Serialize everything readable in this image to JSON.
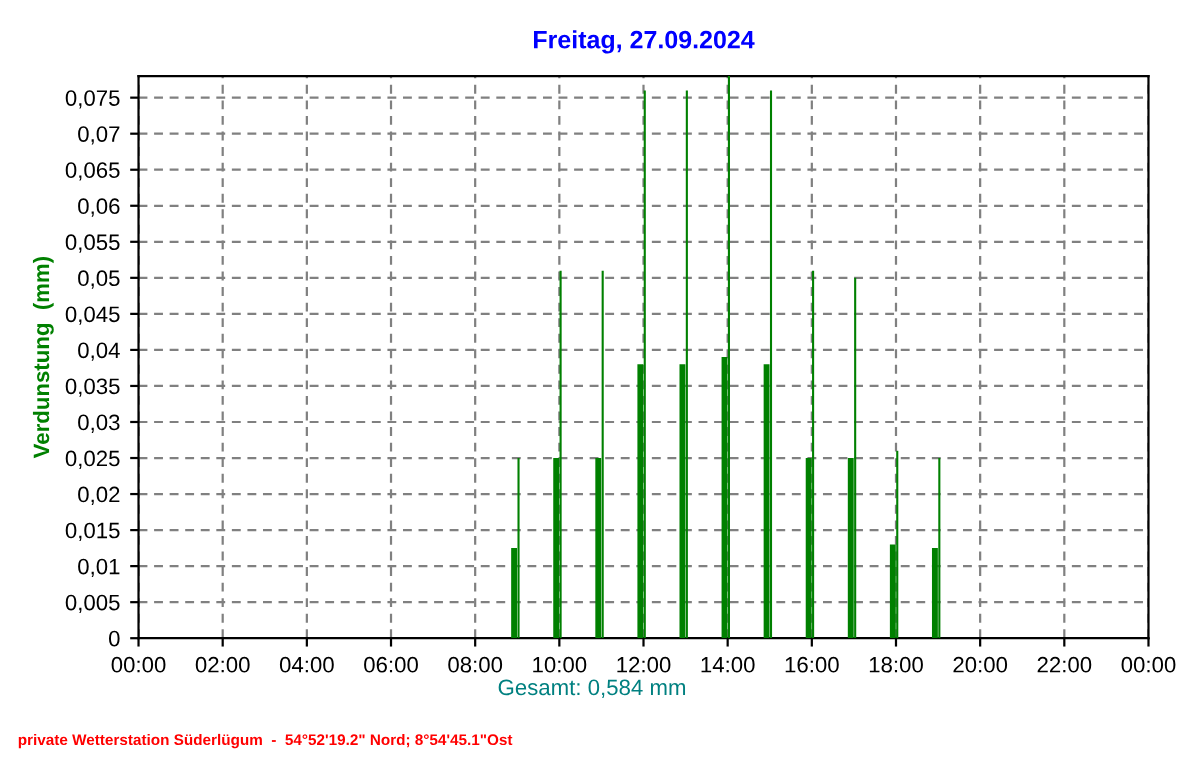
{
  "chart_data": {
    "type": "bar",
    "title": "Freitag, 27.09.2024",
    "ylabel": "Verdunstung  (mm)",
    "x": [
      9,
      10,
      11,
      12,
      13,
      14,
      15,
      16,
      17,
      18,
      19
    ],
    "series": [
      {
        "color": "#008000",
        "values": [
          0.0125,
          0.025,
          0.025,
          0.038,
          0.038,
          0.039,
          0.038,
          0.025,
          0.025,
          0.013,
          0.0125
        ]
      },
      {
        "color": "#008000",
        "values": [
          0.025,
          0.051,
          0.051,
          0.076,
          0.076,
          0.078,
          0.076,
          0.051,
          0.05,
          0.026,
          0.025
        ]
      }
    ],
    "xlim": [
      0,
      24
    ],
    "xticks": [
      {
        "value": 0,
        "label": "00:00"
      },
      {
        "value": 2,
        "label": "02:00"
      },
      {
        "value": 4,
        "label": "04:00"
      },
      {
        "value": 6,
        "label": "06:00"
      },
      {
        "value": 8,
        "label": "08:00"
      },
      {
        "value": 10,
        "label": "10:00"
      },
      {
        "value": 12,
        "label": "12:00"
      },
      {
        "value": 14,
        "label": "14:00"
      },
      {
        "value": 16,
        "label": "16:00"
      },
      {
        "value": 18,
        "label": "18:00"
      },
      {
        "value": 20,
        "label": "20:00"
      },
      {
        "value": 22,
        "label": "22:00"
      },
      {
        "value": 24,
        "label": "00:00"
      }
    ],
    "ylim": [
      0,
      0.078
    ],
    "yticks": [
      0,
      {
        "value": 0.005,
        "label": "0,005"
      },
      {
        "value": 0.01,
        "label": "0,01"
      },
      {
        "value": 0.015,
        "label": "0,015"
      },
      {
        "value": 0.02,
        "label": "0,02"
      },
      {
        "value": 0.025,
        "label": "0,025"
      },
      {
        "value": 0.03,
        "label": "0,03"
      },
      {
        "value": 0.035,
        "label": "0,035"
      },
      {
        "value": 0.04,
        "label": "0,04"
      },
      {
        "value": 0.045,
        "label": "0,045"
      },
      {
        "value": 0.05,
        "label": "0,05"
      },
      {
        "value": 0.055,
        "label": "0,055"
      },
      {
        "value": 0.06,
        "label": "0,06"
      },
      {
        "value": 0.065,
        "label": "0,065"
      },
      {
        "value": 0.07,
        "label": "0,07"
      },
      {
        "value": 0.075,
        "label": "0,075"
      }
    ],
    "grid": true,
    "legend": false,
    "annotations": [
      "Gesamt: 0,584 mm",
      "private Wetterstation Süderlügum  -  54°52'19.2\" Nord; 8°54'45.1\"Ost"
    ]
  }
}
